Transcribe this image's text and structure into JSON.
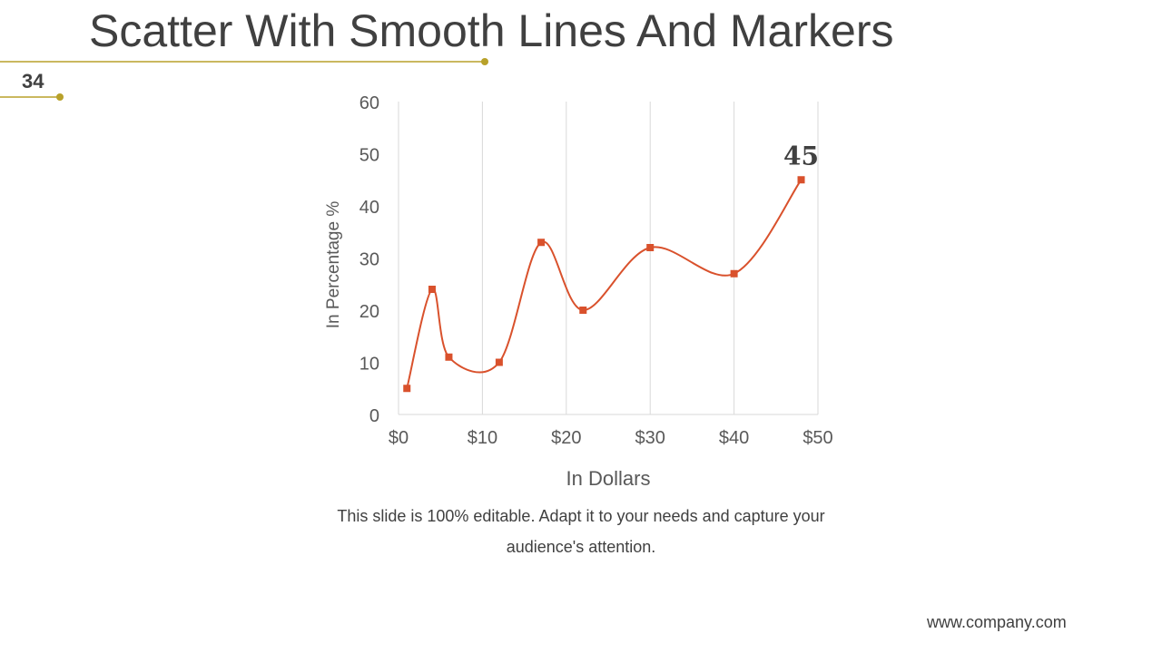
{
  "slide": {
    "title": "Scatter With Smooth Lines And Markers",
    "number": "34",
    "caption": "This slide is 100% editable. Adapt it to your needs and capture your audience's attention.",
    "website": "www.company.com",
    "accent_color": "#b8a12a"
  },
  "chart_data": {
    "type": "scatter",
    "subtype": "smooth-lines-and-markers",
    "x": [
      1,
      4,
      6,
      12,
      17,
      22,
      30,
      40,
      48
    ],
    "y": [
      5,
      24,
      11,
      10,
      33,
      20,
      32,
      27,
      45
    ],
    "series": [
      {
        "values": [
          5,
          24,
          11,
          10,
          33,
          20,
          32,
          27,
          45
        ],
        "color": "#d9512c"
      }
    ],
    "xlabel": "In Dollars",
    "ylabel": "In Percentage %",
    "xlim": [
      0,
      50
    ],
    "ylim": [
      0,
      60
    ],
    "x_ticks": [
      0,
      10,
      20,
      30,
      40,
      50
    ],
    "x_tick_labels": [
      "$0",
      "$10",
      "$20",
      "$30",
      "$40",
      "$50"
    ],
    "y_ticks": [
      0,
      10,
      20,
      30,
      40,
      50,
      60
    ],
    "y_tick_labels": [
      "0",
      "10",
      "20",
      "30",
      "40",
      "50",
      "60"
    ],
    "grid": "vertical",
    "legend": "none",
    "annotation": {
      "text": "45",
      "point_index": 8
    }
  }
}
